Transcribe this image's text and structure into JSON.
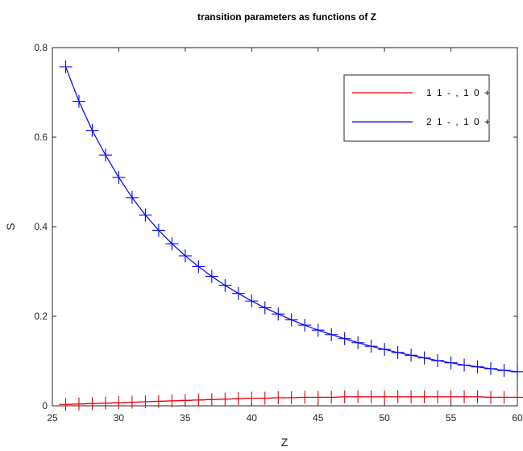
{
  "chart_data": {
    "type": "line",
    "title": "transition parameters as functions of Z",
    "xlabel": "Z",
    "ylabel": "S",
    "xlim": [
      25,
      60
    ],
    "ylim": [
      0,
      0.8
    ],
    "xticks": [
      "25",
      "30",
      "35",
      "40",
      "45",
      "50",
      "55",
      "60"
    ],
    "yticks": [
      "0",
      "0.2",
      "0.4",
      "0.6",
      "0.8"
    ],
    "grid": false,
    "legend_position": "top-right",
    "marker": "plus",
    "x": [
      26,
      27,
      28,
      29,
      30,
      31,
      32,
      33,
      34,
      35,
      36,
      37,
      38,
      39,
      40,
      41,
      42,
      43,
      44,
      45,
      46,
      47,
      48,
      49,
      50,
      51,
      52,
      53,
      54,
      55,
      56,
      57,
      58,
      59,
      60
    ],
    "series": [
      {
        "name": "1 1 - , 1 0 +",
        "color": "#e8000b",
        "values": [
          0.003,
          0.004,
          0.005,
          0.006,
          0.007,
          0.008,
          0.009,
          0.01,
          0.011,
          0.012,
          0.013,
          0.014,
          0.015,
          0.016,
          0.017,
          0.017,
          0.018,
          0.018,
          0.019,
          0.019,
          0.019,
          0.02,
          0.02,
          0.02,
          0.02,
          0.02,
          0.02,
          0.02,
          0.02,
          0.02,
          0.02,
          0.02,
          0.019,
          0.019,
          0.019
        ]
      },
      {
        "name": "2 1 - , 1 0 +",
        "color": "#0000ff",
        "values": [
          0.757,
          0.68,
          0.615,
          0.56,
          0.51,
          0.465,
          0.426,
          0.392,
          0.362,
          0.335,
          0.311,
          0.289,
          0.269,
          0.251,
          0.234,
          0.219,
          0.205,
          0.192,
          0.18,
          0.169,
          0.159,
          0.15,
          0.141,
          0.133,
          0.126,
          0.119,
          0.113,
          0.107,
          0.101,
          0.096,
          0.091,
          0.087,
          0.083,
          0.079,
          0.076
        ]
      }
    ]
  }
}
